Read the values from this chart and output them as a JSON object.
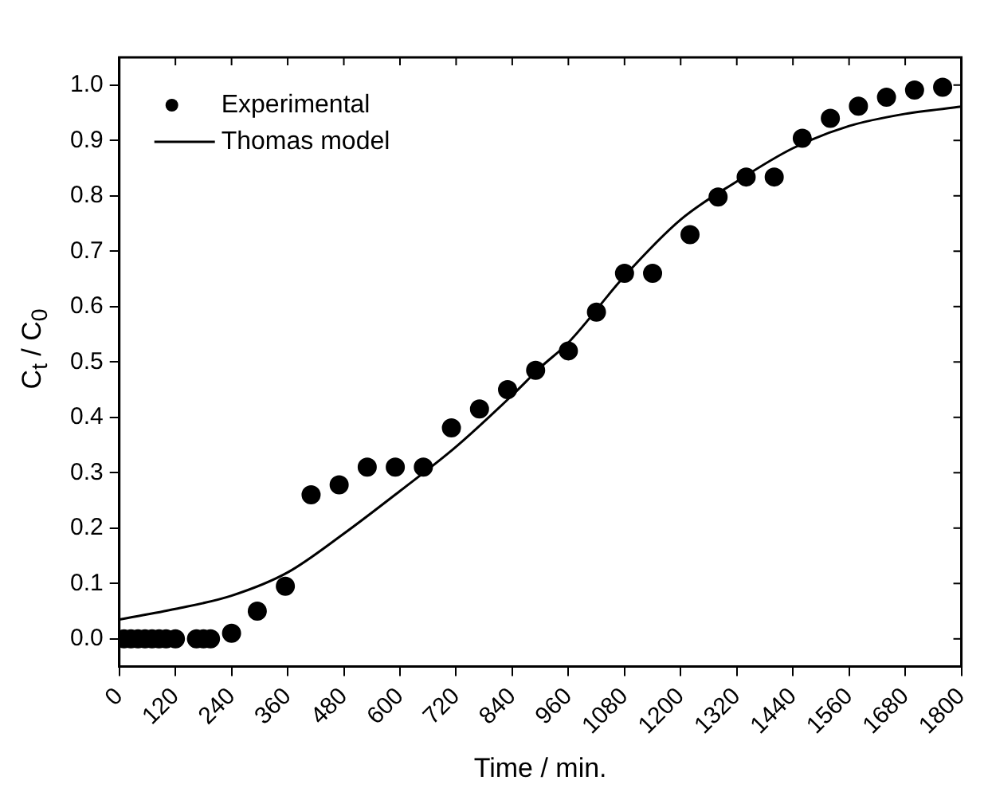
{
  "chart_data": {
    "type": "scatter",
    "xlabel": "Time / min.",
    "ylabel": "C$_{t}$ / C$_{0}$",
    "xlim": [
      0,
      1800
    ],
    "xticks": [
      0,
      120,
      240,
      360,
      480,
      600,
      720,
      840,
      960,
      1080,
      1200,
      1320,
      1440,
      1560,
      1680,
      1800
    ],
    "ylim": [
      -0.05,
      1.05
    ],
    "yticks": [
      {
        "value": 0,
        "label": "0.0"
      },
      {
        "value": 0.1,
        "label": "0.1"
      },
      {
        "value": 0.2,
        "label": "0.2"
      },
      {
        "value": 0.3,
        "label": "0.3"
      },
      {
        "value": 0.4,
        "label": "0.4"
      },
      {
        "value": 0.5,
        "label": "0.5"
      },
      {
        "value": 0.6,
        "label": "0.6"
      },
      {
        "value": 0.7,
        "label": "0.7"
      },
      {
        "value": 0.8,
        "label": "0.8"
      },
      {
        "value": 0.9,
        "label": "0.9"
      },
      {
        "value": 1,
        "label": "1.0"
      }
    ],
    "grid": false,
    "legend": "top left",
    "series": [
      {
        "name": "Experimental",
        "marker": "circle",
        "color": "#000000",
        "x": [
          10,
          25,
          40,
          55,
          70,
          85,
          100,
          120,
          165,
          180,
          195,
          240,
          295,
          355,
          410,
          470,
          530,
          590,
          650,
          710,
          770,
          830,
          890,
          960,
          1020,
          1080,
          1140,
          1220,
          1280,
          1340,
          1400,
          1460,
          1520,
          1580,
          1640,
          1700,
          1760
        ],
        "values": [
          0,
          0,
          0,
          0,
          0,
          0,
          0,
          0,
          0,
          0,
          0,
          0.01,
          0.05,
          0.095,
          0.26,
          0.278,
          0.31,
          0.31,
          0.31,
          0.381,
          0.415,
          0.45,
          0.485,
          0.52,
          0.59,
          0.66,
          0.66,
          0.73,
          0.798,
          0.834,
          0.834,
          0.904,
          0.94,
          0.962,
          0.978,
          0.991,
          0.996
        ]
      },
      {
        "name": "Thomas model",
        "type": "line",
        "marker": "none",
        "line_style": "solid",
        "color": "#000000",
        "x": [
          0,
          120,
          240,
          360,
          480,
          600,
          720,
          840,
          900,
          960,
          1080,
          1200,
          1320,
          1440,
          1560,
          1680,
          1800
        ],
        "values": [
          0.035,
          0.054,
          0.078,
          0.12,
          0.19,
          0.267,
          0.347,
          0.44,
          0.49,
          0.535,
          0.655,
          0.757,
          0.826,
          0.886,
          0.926,
          0.948,
          0.961
        ]
      }
    ]
  }
}
